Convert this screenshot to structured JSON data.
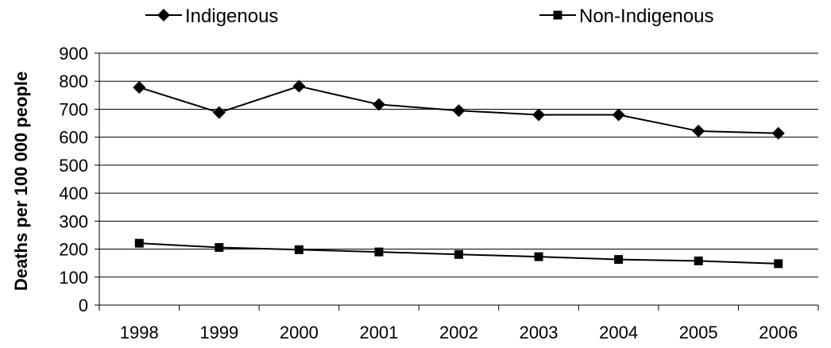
{
  "chart_data": {
    "type": "line",
    "title": "",
    "xlabel": "",
    "ylabel": "Deaths per 100 000 people",
    "categories": [
      "1998",
      "1999",
      "2000",
      "2001",
      "2002",
      "2003",
      "2004",
      "2005",
      "2006"
    ],
    "ylim": [
      0,
      900
    ],
    "yticks": [
      "0",
      "100",
      "200",
      "300",
      "400",
      "500",
      "600",
      "700",
      "800",
      "900"
    ],
    "grid": "horizontal",
    "legend": "top",
    "series": [
      {
        "name": "Indigenous",
        "marker": "diamond",
        "color": "#000000",
        "values": [
          778,
          688,
          782,
          717,
          695,
          680,
          680,
          622,
          614
        ]
      },
      {
        "name": "Non-Indigenous",
        "marker": "square",
        "color": "#000000",
        "values": [
          221,
          206,
          198,
          190,
          181,
          173,
          163,
          158,
          148
        ]
      }
    ]
  }
}
